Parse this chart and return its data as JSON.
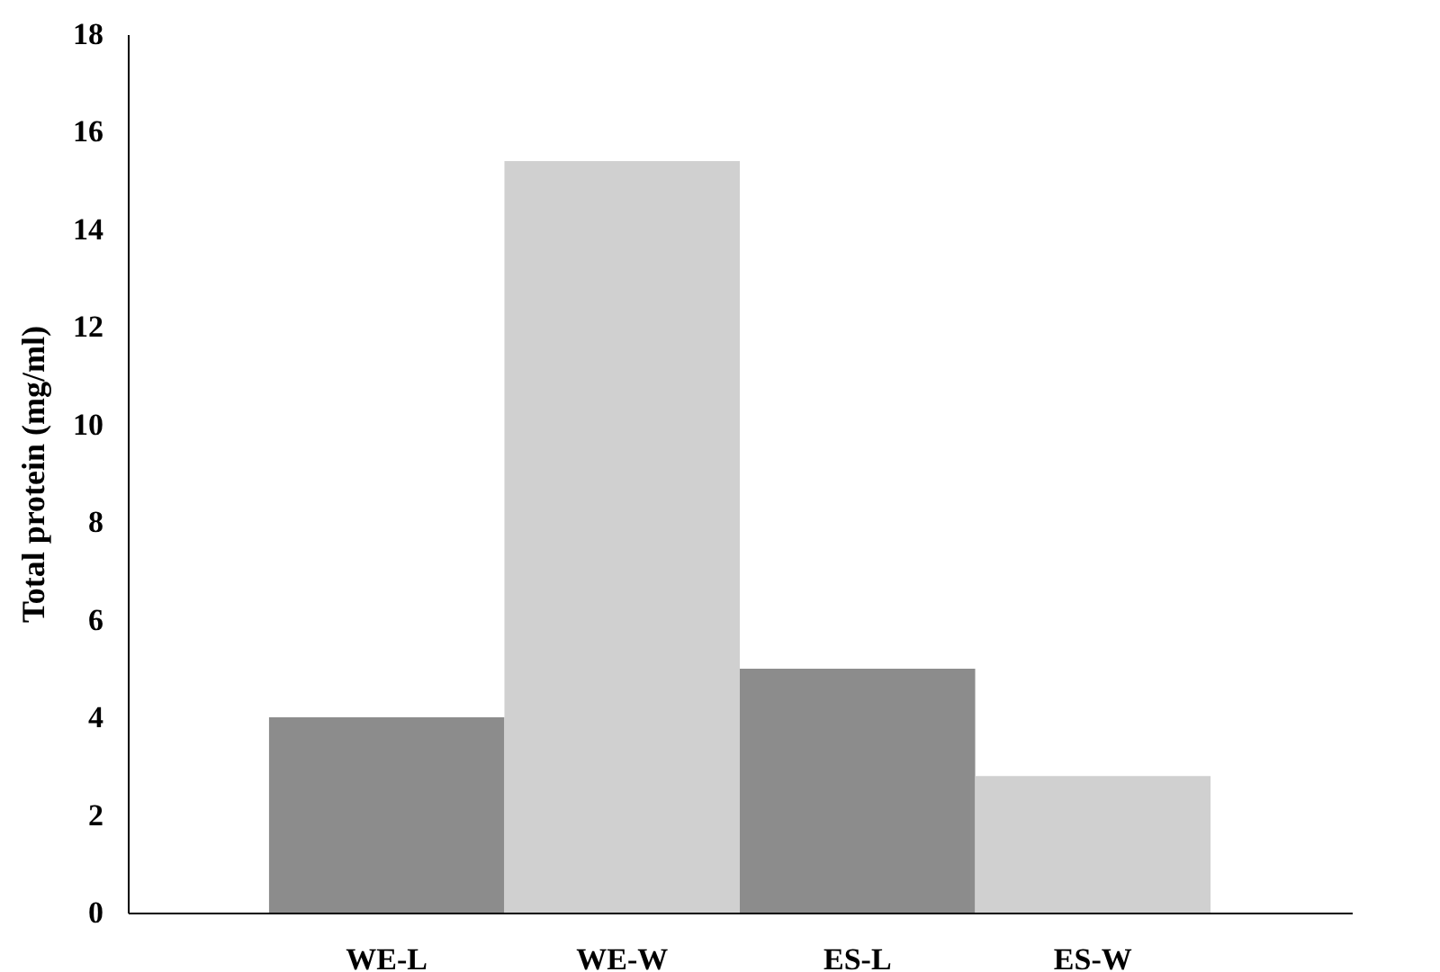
{
  "chart_data": {
    "type": "bar",
    "ylabel": "Total protein (mg/ml)",
    "categories": [
      "WE-L",
      "WE-W",
      "ES-L",
      "ES-W"
    ],
    "values": [
      4.0,
      15.4,
      5.0,
      2.8
    ],
    "colors": [
      "#8c8c8c",
      "#d0d0d0",
      "#8c8c8c",
      "#d0d0d0"
    ],
    "ylim": [
      0,
      18
    ],
    "yticks": [
      0,
      2,
      4,
      6,
      8,
      10,
      12,
      14,
      16,
      18
    ],
    "grid": false
  }
}
